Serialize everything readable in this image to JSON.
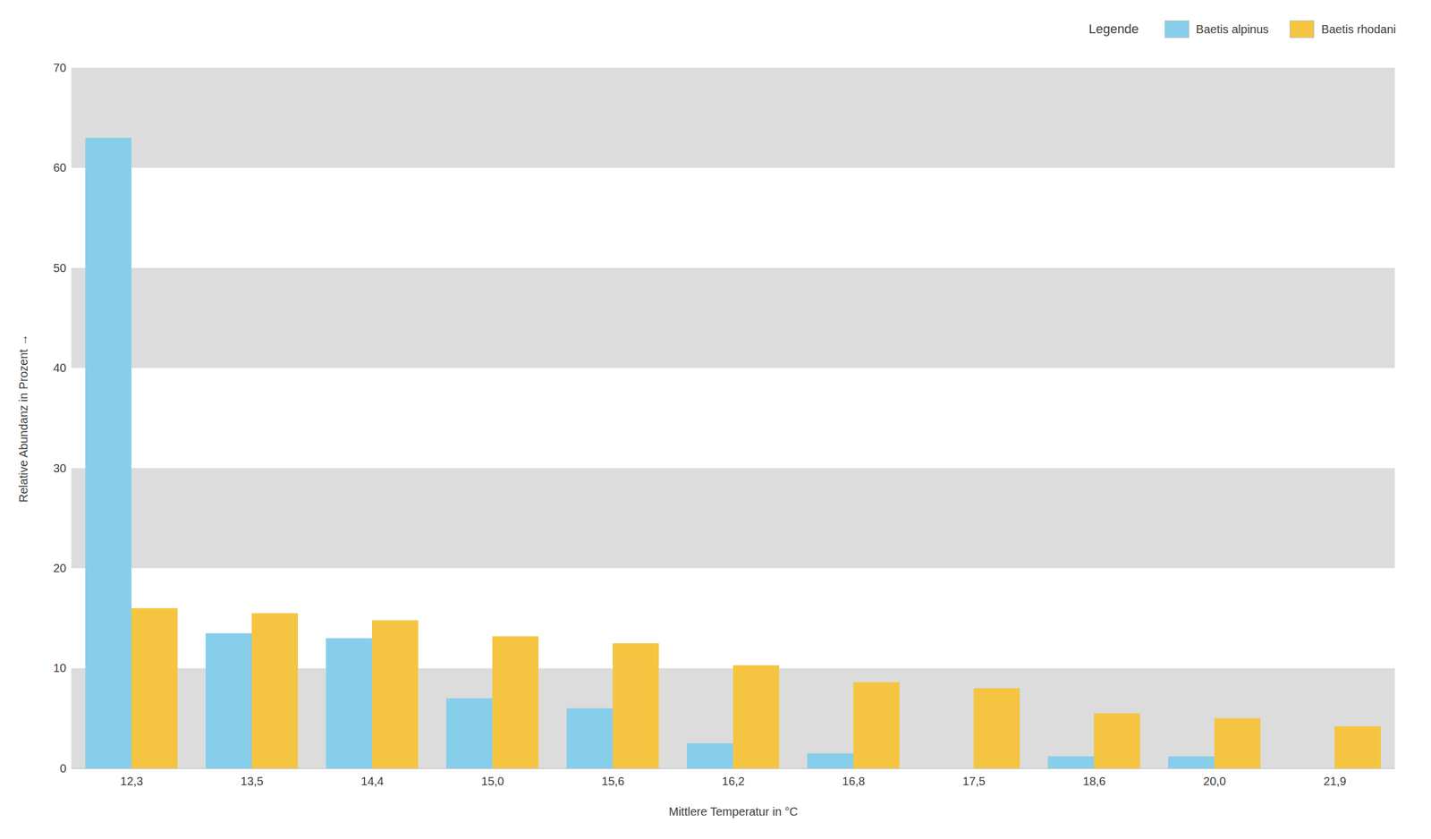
{
  "chart_data": {
    "type": "bar",
    "categories": [
      "12,3",
      "13,5",
      "14,4",
      "15,0",
      "15,6",
      "16,2",
      "16,8",
      "17,5",
      "18,6",
      "20,0",
      "21,9"
    ],
    "series": [
      {
        "name": "Baetis alpinus",
        "color": "#87CEEB",
        "values": [
          63.0,
          13.5,
          13.0,
          7.0,
          6.0,
          2.5,
          1.5,
          0.0,
          1.2,
          1.2,
          0.0
        ]
      },
      {
        "name": "Baetis rhodani",
        "color": "#F5C542",
        "values": [
          16.0,
          15.5,
          14.8,
          13.2,
          12.5,
          10.3,
          8.6,
          8.0,
          5.5,
          5.0,
          4.2
        ]
      }
    ],
    "xlabel": "Mittlere Temperatur in °C",
    "ylabel": "Relative Abundanz in Prozent",
    "legend_title": "Legende",
    "legend": "upper right",
    "ylim": [
      0,
      70
    ],
    "yticks": [
      0,
      10,
      20,
      30,
      40,
      50,
      60,
      70
    ],
    "grid": true
  }
}
